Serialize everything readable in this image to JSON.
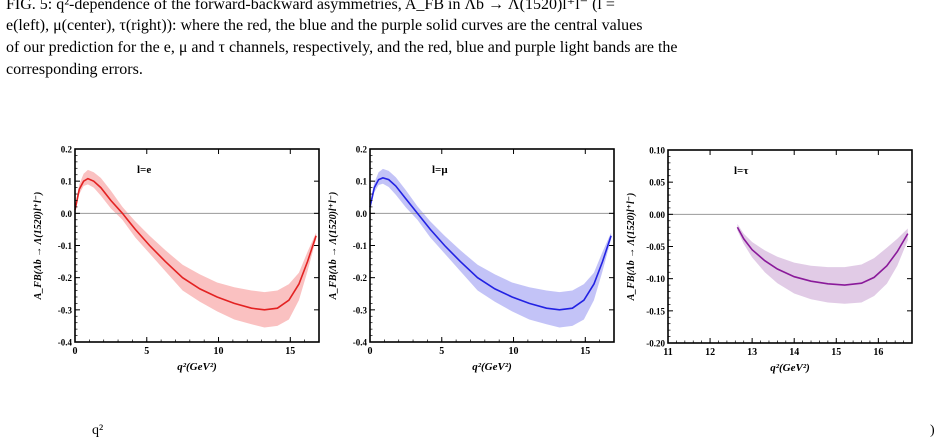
{
  "caption": {
    "line1": "FIG. 5: q²-dependence of the forward-backward asymmetries, A_FB in Λb → Λ(1520)l⁺l⁻ (l =",
    "line2": "e(left),  μ(center),  τ(right)):  where the red, the blue and the purple solid curves are the central values",
    "line3": "of our prediction for the e, μ and τ channels, respectively, and the red, blue and purple light bands are the",
    "line4": "corresponding errors."
  },
  "bottom_fragment": "q²",
  "bottom_paren": ")",
  "colors": {
    "e": "#e32222",
    "mu": "#2222e3",
    "tau": "#8a1a9a",
    "e_band": "#f9b6b6",
    "mu_band": "#b9b9f6",
    "tau_band": "#dcc2e2"
  },
  "chart_data": [
    {
      "type": "line",
      "annotation": "l=e",
      "xlabel": "q²(GeV²)",
      "ylabel": "A_FB(Λb → Λ(1520)l⁺l⁻)",
      "xlim": [
        0,
        17
      ],
      "ylim": [
        -0.4,
        0.2
      ],
      "xticks": [
        "0",
        "5",
        "10",
        "15"
      ],
      "yticks": [
        "0.2",
        "0.1",
        "0.0",
        "-0.1",
        "-0.2",
        "-0.3",
        "-0.4"
      ],
      "grid": false,
      "series": [
        {
          "x": [
            0.0,
            0.3,
            0.6,
            0.9,
            1.3,
            1.8,
            2.5,
            3.3,
            4.2,
            5.2,
            6.3,
            7.5,
            8.7,
            9.9,
            11.1,
            12.3,
            13.2,
            14.1,
            14.9,
            15.6,
            16.2,
            16.8
          ],
          "y": [
            0.01,
            0.075,
            0.1,
            0.108,
            0.1,
            0.08,
            0.04,
            0.0,
            -0.05,
            -0.1,
            -0.15,
            -0.2,
            -0.235,
            -0.26,
            -0.28,
            -0.295,
            -0.3,
            -0.295,
            -0.27,
            -0.22,
            -0.15,
            -0.07
          ],
          "y_upper": [
            0.02,
            0.09,
            0.123,
            0.135,
            0.128,
            0.11,
            0.07,
            0.02,
            -0.025,
            -0.07,
            -0.115,
            -0.16,
            -0.19,
            -0.215,
            -0.23,
            -0.24,
            -0.245,
            -0.24,
            -0.22,
            -0.185,
            -0.12,
            -0.06
          ],
          "y_lower": [
            0.0,
            0.06,
            0.085,
            0.09,
            0.08,
            0.055,
            0.015,
            -0.02,
            -0.075,
            -0.125,
            -0.18,
            -0.24,
            -0.275,
            -0.305,
            -0.33,
            -0.345,
            -0.355,
            -0.35,
            -0.33,
            -0.27,
            -0.18,
            -0.08
          ]
        }
      ]
    },
    {
      "type": "line",
      "annotation": "l=μ",
      "xlabel": "q²(GeV²)",
      "ylabel": "A_FB(Λb → Λ(1520)l⁺l⁻)",
      "xlim": [
        0,
        17
      ],
      "ylim": [
        -0.4,
        0.2
      ],
      "xticks": [
        "0",
        "5",
        "10",
        "15"
      ],
      "yticks": [
        "0.2",
        "0.1",
        "0.0",
        "-0.1",
        "-0.2",
        "-0.3",
        "-0.4"
      ],
      "grid": false,
      "series": [
        {
          "x": [
            0.0,
            0.3,
            0.6,
            0.9,
            1.3,
            1.8,
            2.5,
            3.3,
            4.2,
            5.2,
            6.3,
            7.5,
            8.7,
            9.9,
            11.1,
            12.3,
            13.2,
            14.1,
            14.9,
            15.6,
            16.2,
            16.8
          ],
          "y": [
            0.02,
            0.08,
            0.105,
            0.11,
            0.105,
            0.085,
            0.045,
            0.0,
            -0.05,
            -0.1,
            -0.15,
            -0.2,
            -0.235,
            -0.26,
            -0.28,
            -0.295,
            -0.3,
            -0.295,
            -0.27,
            -0.22,
            -0.15,
            -0.07
          ],
          "y_upper": [
            0.03,
            0.095,
            0.128,
            0.138,
            0.132,
            0.112,
            0.072,
            0.022,
            -0.025,
            -0.07,
            -0.115,
            -0.16,
            -0.19,
            -0.215,
            -0.23,
            -0.24,
            -0.245,
            -0.24,
            -0.22,
            -0.185,
            -0.12,
            -0.06
          ],
          "y_lower": [
            0.01,
            0.065,
            0.088,
            0.092,
            0.082,
            0.058,
            0.018,
            -0.02,
            -0.075,
            -0.125,
            -0.18,
            -0.24,
            -0.275,
            -0.305,
            -0.33,
            -0.345,
            -0.355,
            -0.35,
            -0.33,
            -0.27,
            -0.18,
            -0.08
          ]
        }
      ]
    },
    {
      "type": "line",
      "annotation": "l=τ",
      "xlabel": "q²(GeV²)",
      "ylabel": "A_FB(Λb → Λ(1520)l⁺l⁻)",
      "xlim": [
        11,
        16.8
      ],
      "ylim": [
        -0.2,
        0.1
      ],
      "xticks": [
        "11",
        "12",
        "13",
        "14",
        "15",
        "16"
      ],
      "yticks": [
        "0.10",
        "0.05",
        "0.00",
        "-0.05",
        "-0.10",
        "-0.15",
        "-0.20"
      ],
      "grid": false,
      "series": [
        {
          "x": [
            12.65,
            12.8,
            13.0,
            13.3,
            13.6,
            14.0,
            14.4,
            14.8,
            15.2,
            15.6,
            15.9,
            16.2,
            16.45,
            16.7
          ],
          "y": [
            -0.02,
            -0.038,
            -0.055,
            -0.072,
            -0.085,
            -0.097,
            -0.104,
            -0.108,
            -0.11,
            -0.107,
            -0.098,
            -0.08,
            -0.058,
            -0.03
          ],
          "y_upper": [
            -0.015,
            -0.03,
            -0.043,
            -0.056,
            -0.066,
            -0.075,
            -0.08,
            -0.082,
            -0.082,
            -0.078,
            -0.068,
            -0.052,
            -0.038,
            -0.022
          ],
          "y_lower": [
            -0.025,
            -0.046,
            -0.067,
            -0.09,
            -0.107,
            -0.123,
            -0.132,
            -0.137,
            -0.139,
            -0.137,
            -0.127,
            -0.108,
            -0.08,
            -0.04
          ]
        }
      ]
    }
  ]
}
